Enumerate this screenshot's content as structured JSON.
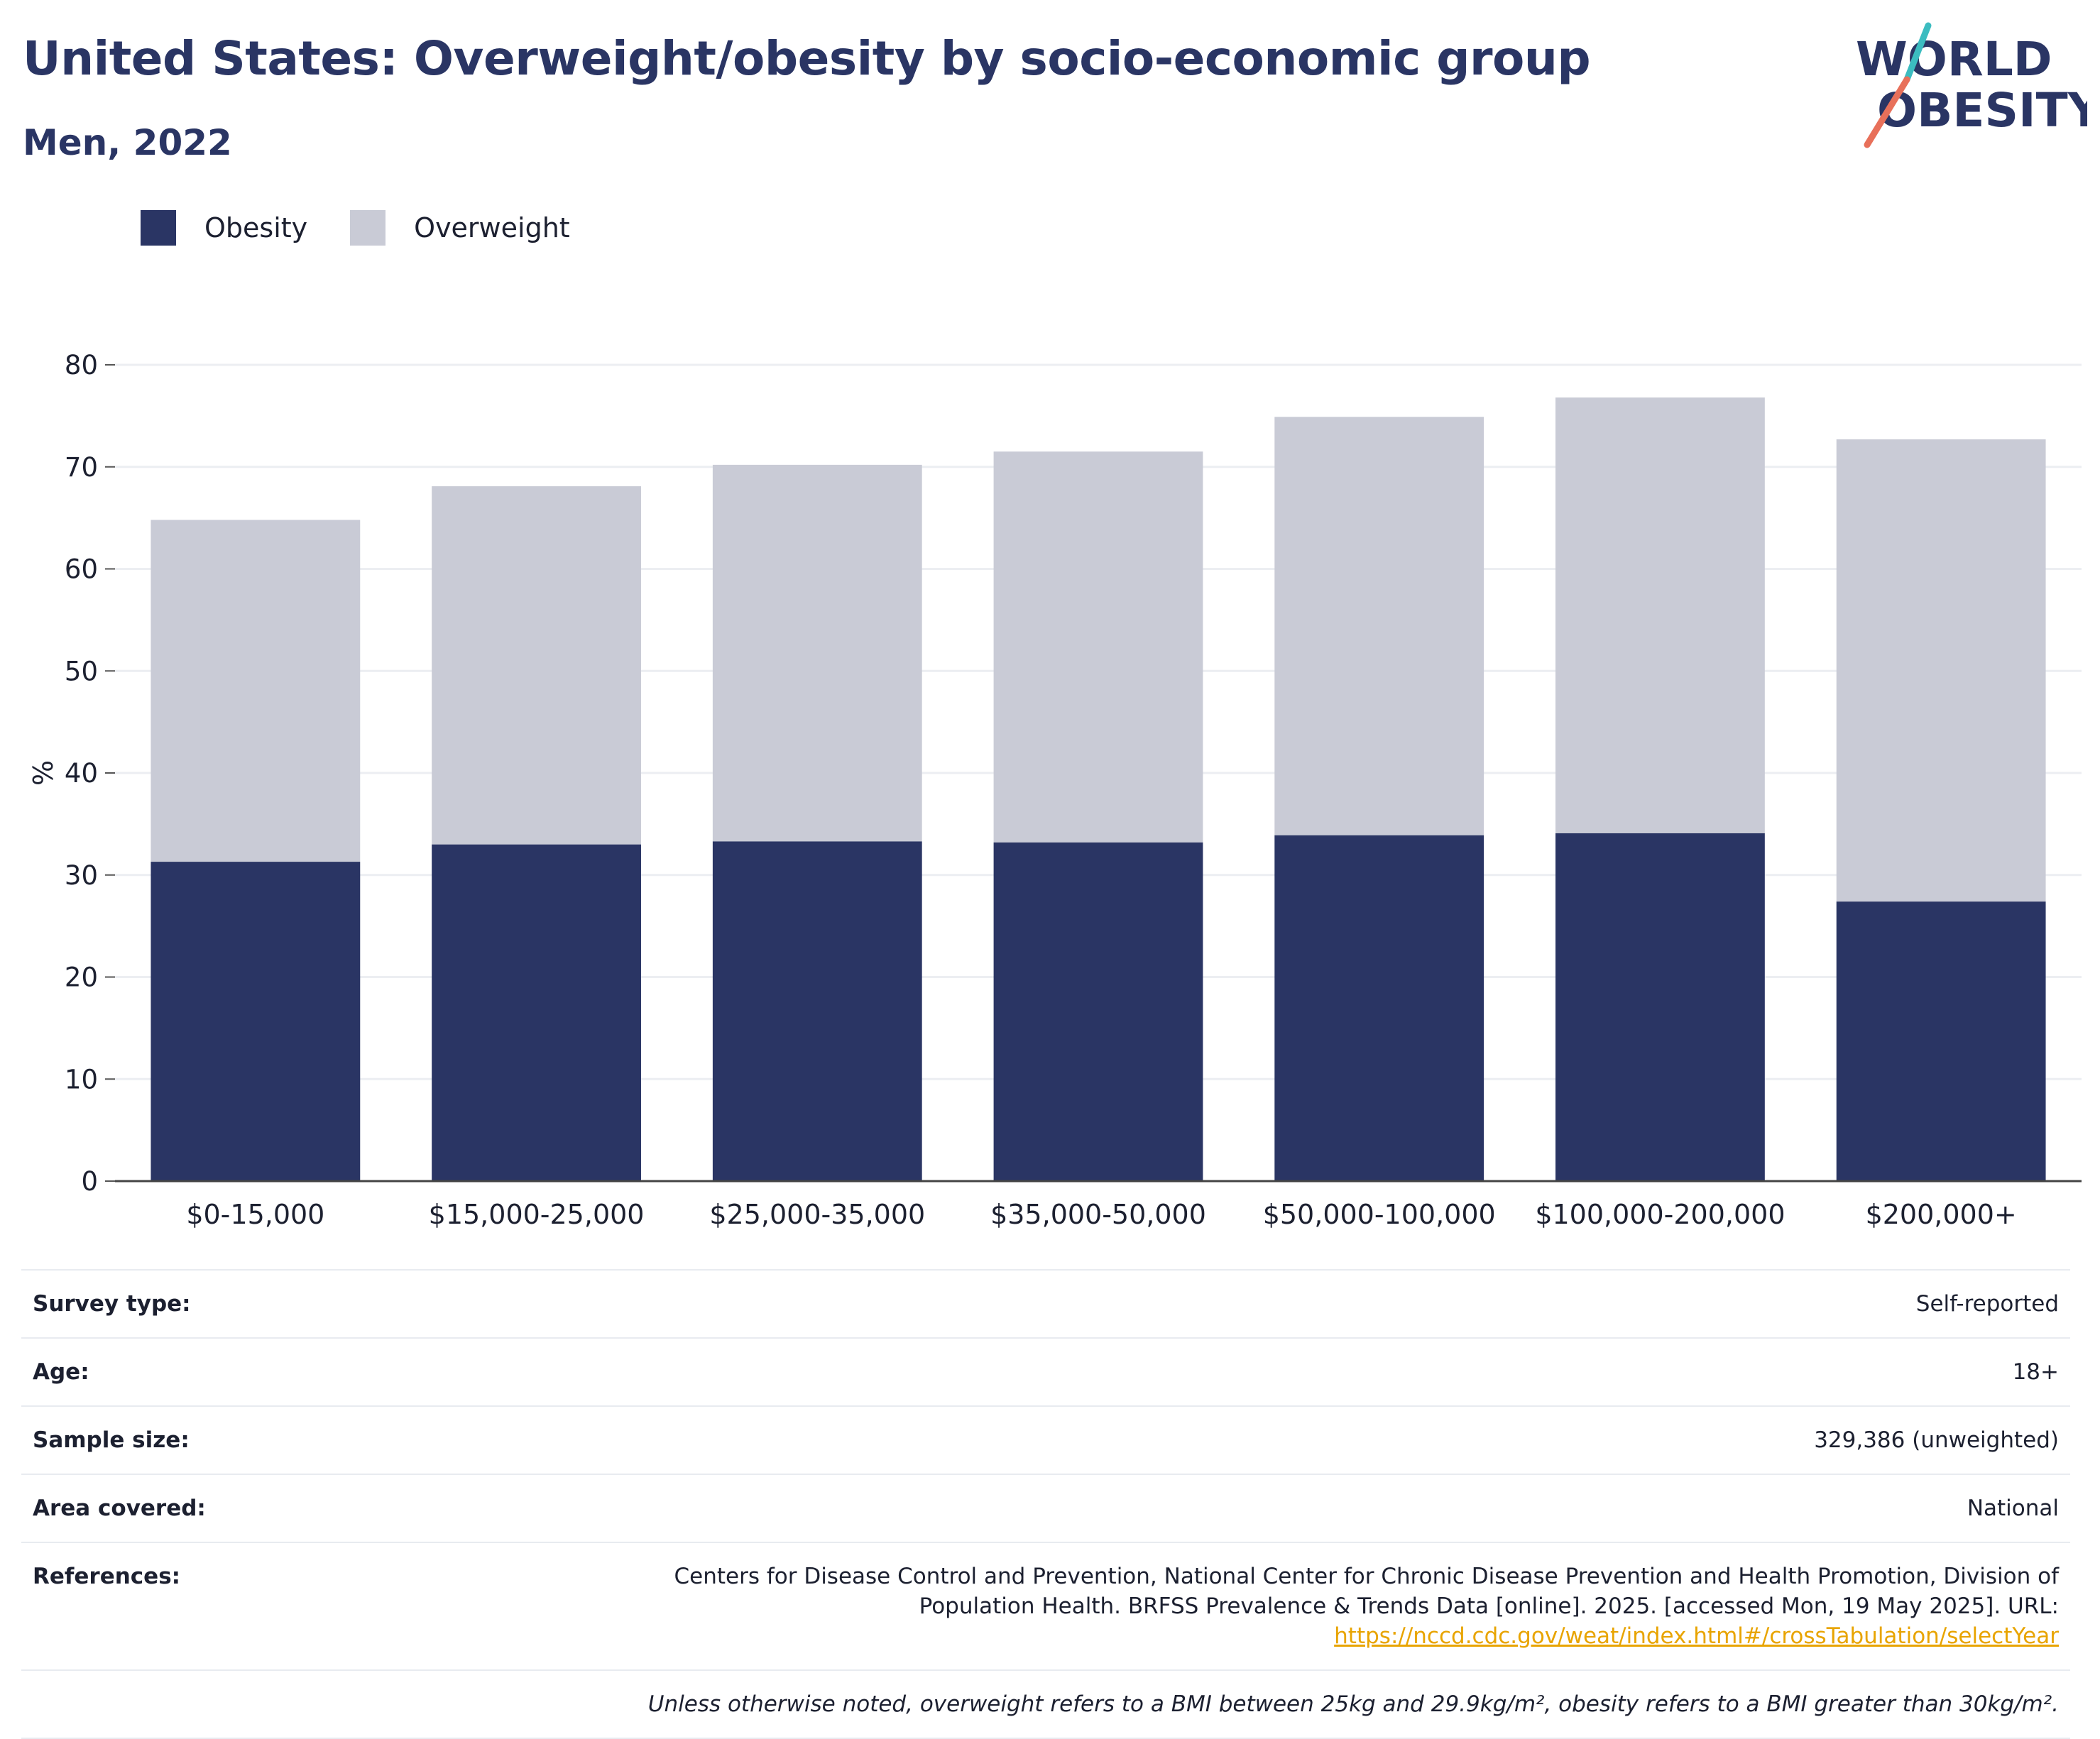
{
  "header": {
    "title": "United States: Overweight/obesity by socio-economic group",
    "subtitle": "Men, 2022"
  },
  "logo": {
    "line1": "WORLD",
    "line2": "OBESITY",
    "accent_teal": "#3cbcc0",
    "accent_red": "#e8705a"
  },
  "legend": [
    {
      "label": "Obesity",
      "color": "#2a3564"
    },
    {
      "label": "Overweight",
      "color": "#c9cbd6"
    }
  ],
  "chart_data": {
    "type": "bar",
    "stacked": true,
    "categories": [
      "$0-15,000",
      "$15,000-25,000",
      "$25,000-35,000",
      "$35,000-50,000",
      "$50,000-100,000",
      "$100,000-200,000",
      "$200,000+"
    ],
    "series": [
      {
        "name": "Obesity",
        "color": "#2a3564",
        "values": [
          31.3,
          33.0,
          33.3,
          33.2,
          33.9,
          34.1,
          27.4
        ]
      },
      {
        "name": "Overweight",
        "color": "#c9cbd6",
        "values": [
          33.5,
          35.1,
          36.9,
          38.3,
          41.0,
          42.7,
          45.3
        ]
      }
    ],
    "ylabel": "%",
    "ylim": [
      0,
      80
    ],
    "yticks": [
      0,
      10,
      20,
      30,
      40,
      50,
      60,
      70,
      80
    ],
    "grid": true
  },
  "details": {
    "survey_type": {
      "label": "Survey type:",
      "value": "Self-reported"
    },
    "age": {
      "label": "Age:",
      "value": "18+"
    },
    "sample_size": {
      "label": "Sample size:",
      "value": "329,386 (unweighted)"
    },
    "area": {
      "label": "Area covered:",
      "value": "National"
    },
    "references": {
      "label": "References:",
      "text": "Centers for Disease Control and Prevention, National Center for Chronic Disease Prevention and Health Promotion, Division of Population Health. BRFSS Prevalence & Trends Data [online]. 2025. [accessed Mon, 19 May 2025]. URL:",
      "url": "https://nccd.cdc.gov/weat/index.html#/crossTabulation/selectYear"
    },
    "note": "Unless otherwise noted, overweight refers to a BMI between 25kg and 29.9kg/m², obesity refers to a BMI greater than 30kg/m²."
  }
}
